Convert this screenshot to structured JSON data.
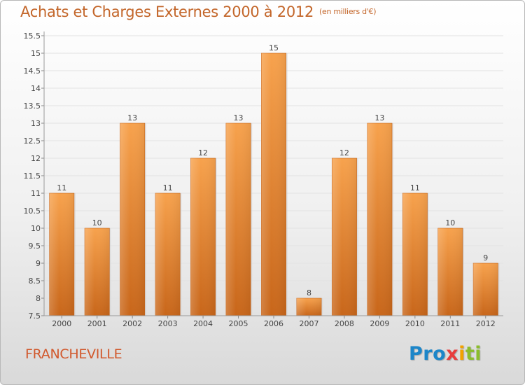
{
  "title": "Achats et Charges Externes 2000 à 2012",
  "unit": "(en milliers d'€)",
  "place": "FRANCHEVILLE",
  "logo": {
    "part1": "Pro",
    "part2": "x",
    "part3": "i",
    "part4": "ti"
  },
  "colors": {
    "bar_light": "#f7a24d",
    "bar_dark": "#c8661a",
    "title": "#c3662a",
    "place": "#d1582c"
  },
  "chart_data": {
    "type": "bar",
    "categories": [
      "2000",
      "2001",
      "2002",
      "2003",
      "2004",
      "2005",
      "2006",
      "2007",
      "2008",
      "2009",
      "2010",
      "2011",
      "2012"
    ],
    "values": [
      11,
      10,
      13,
      11,
      12,
      13,
      15,
      8,
      12,
      13,
      11,
      10,
      9
    ],
    "labels": [
      "11",
      "10",
      "13",
      "11",
      "12",
      "13",
      "15",
      "8",
      "12",
      "13",
      "11",
      "10",
      "9"
    ],
    "ylim": [
      7.5,
      15.5
    ],
    "yticks": [
      "7.5",
      "8",
      "8.5",
      "9",
      "9.5",
      "10",
      "10.5",
      "11",
      "11.5",
      "12",
      "12.5",
      "13",
      "13.5",
      "14",
      "14.5",
      "15",
      "15.5"
    ],
    "ytick_values": [
      7.5,
      8,
      8.5,
      9,
      9.5,
      10,
      10.5,
      11,
      11.5,
      12,
      12.5,
      13,
      13.5,
      14,
      14.5,
      15,
      15.5
    ],
    "grid": true,
    "legend": "none"
  }
}
